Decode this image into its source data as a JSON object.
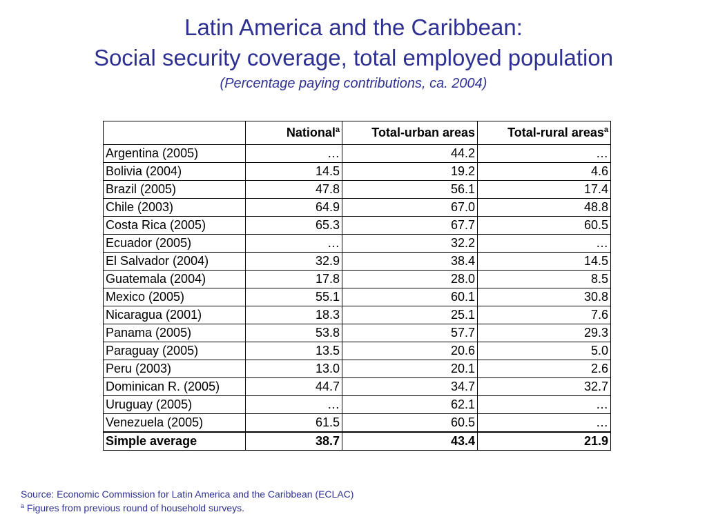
{
  "title": {
    "line1": "Latin America and the Caribbean:",
    "line2": "Social security coverage, total employed population",
    "subtitle": "(Percentage paying contributions, ca. 2004)"
  },
  "table": {
    "headers": {
      "corner": "",
      "national": "National",
      "national_note": "a",
      "urban": "Total-urban areas",
      "rural": "Total-rural areas",
      "rural_note": "a"
    },
    "rows": [
      {
        "country": "Argentina (2005)",
        "national": "…",
        "urban": "44.2",
        "rural": "…"
      },
      {
        "country": "Bolivia (2004)",
        "national": "14.5",
        "urban": "19.2",
        "rural": "4.6"
      },
      {
        "country": "Brazil (2005)",
        "national": "47.8",
        "urban": "56.1",
        "rural": "17.4"
      },
      {
        "country": "Chile (2003)",
        "national": "64.9",
        "urban": "67.0",
        "rural": "48.8"
      },
      {
        "country": "Costa Rica (2005)",
        "national": "65.3",
        "urban": "67.7",
        "rural": "60.5"
      },
      {
        "country": "Ecuador (2005)",
        "national": "…",
        "urban": "32.2",
        "rural": "…"
      },
      {
        "country": "El Salvador (2004)",
        "national": "32.9",
        "urban": "38.4",
        "rural": "14.5"
      },
      {
        "country": "Guatemala (2004)",
        "national": "17.8",
        "urban": "28.0",
        "rural": "8.5"
      },
      {
        "country": "Mexico (2005)",
        "national": "55.1",
        "urban": "60.1",
        "rural": "30.8"
      },
      {
        "country": "Nicaragua (2001)",
        "national": "18.3",
        "urban": "25.1",
        "rural": "7.6"
      },
      {
        "country": "Panama (2005)",
        "national": "53.8",
        "urban": "57.7",
        "rural": "29.3"
      },
      {
        "country": "Paraguay (2005)",
        "national": "13.5",
        "urban": "20.6",
        "rural": "5.0"
      },
      {
        "country": "Peru (2003)",
        "national": "13.0",
        "urban": "20.1",
        "rural": "2.6"
      },
      {
        "country": "Dominican R. (2005)",
        "national": "44.7",
        "urban": "34.7",
        "rural": "32.7"
      },
      {
        "country": "Uruguay (2005)",
        "national": "…",
        "urban": "62.1",
        "rural": "…"
      },
      {
        "country": "Venezuela (2005)",
        "national": "61.5",
        "urban": "60.5",
        "rural": "…"
      }
    ],
    "average": {
      "label": "Simple average",
      "national": "38.7",
      "urban": "43.4",
      "rural": "21.9"
    }
  },
  "footer": {
    "source": "Source: Economic Commission for Latin America and the Caribbean (ECLAC)",
    "note_marker": "a",
    "note": " Figures from previous round of household surveys."
  },
  "colors": {
    "title": "#2e3192",
    "text": "#000000",
    "background": "#ffffff"
  }
}
